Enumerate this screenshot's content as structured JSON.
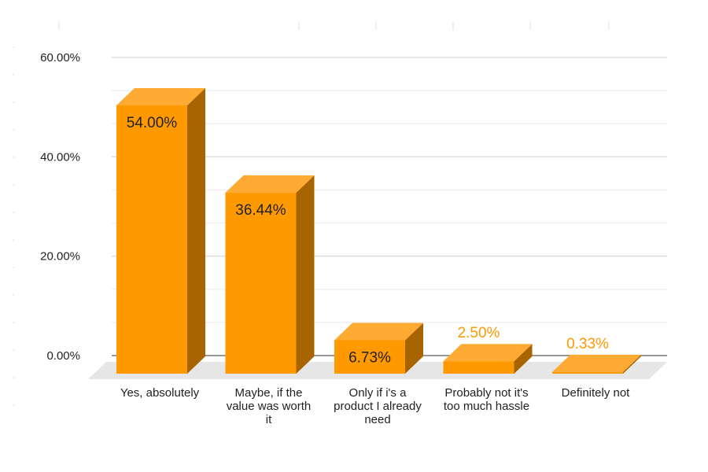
{
  "chart_data": {
    "type": "bar",
    "title": "",
    "xlabel": "",
    "ylabel": "",
    "categories": [
      "Yes, absolutely",
      "Maybe, if the value was worth it",
      "Only if i's a product I already need",
      "Probably not it's too much hassle",
      "Definitely not"
    ],
    "category_lines": [
      [
        "Yes, absolutely"
      ],
      [
        "Maybe, if the",
        "value was worth",
        "it"
      ],
      [
        "Only if i's a",
        "product I already",
        "need"
      ],
      [
        "Probably not it's",
        "too much hassle"
      ],
      [
        "Definitely not"
      ]
    ],
    "values": [
      54.0,
      36.44,
      6.73,
      2.5,
      0.33
    ],
    "data_labels": [
      "54.00%",
      "36.44%",
      "6.73%",
      "2.50%",
      "0.33%"
    ],
    "ylim": [
      0,
      60
    ],
    "y_ticks": [
      0,
      20,
      40,
      60
    ],
    "y_tick_labels": [
      "0.00%",
      "20.00%",
      "40.00%",
      "60.00%"
    ],
    "grid": true,
    "legend": "none",
    "three_d": true,
    "colors": {
      "bar_front": "#FF9900",
      "bar_top": "#FFAA33",
      "bar_side": "#A86400",
      "outside_label": "#FF9900",
      "inside_label": "#222222",
      "floor": "#E6E6E6",
      "grid": "#DDDDDD",
      "baseline": "#999999"
    }
  }
}
